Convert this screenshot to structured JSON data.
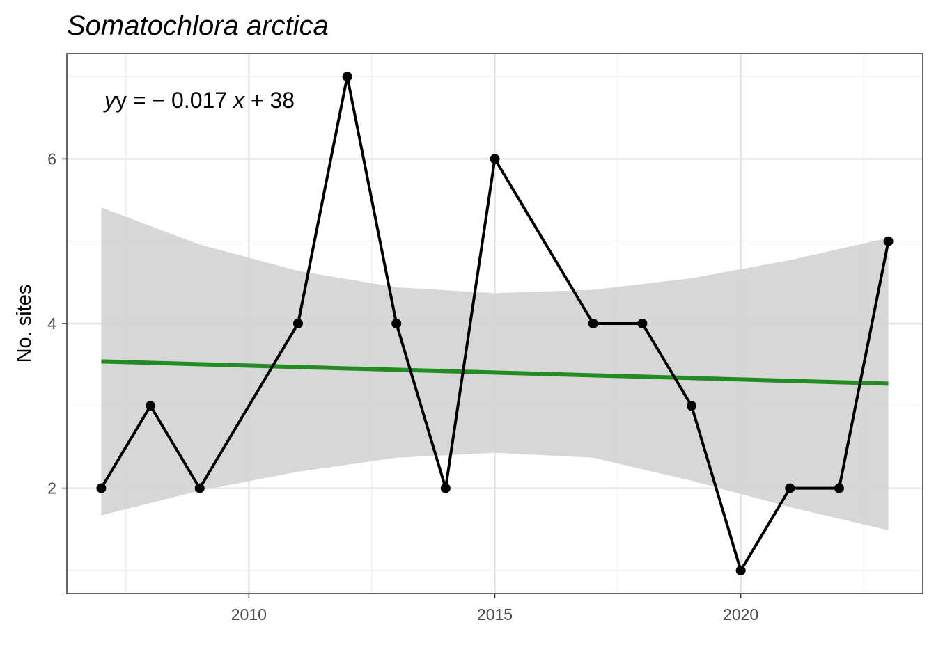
{
  "chart_data": {
    "type": "line",
    "title": "Somatochlora arctica",
    "xlabel": "",
    "ylabel": "No. sites",
    "annotation": {
      "prefix": "y = − 0.017 ",
      "x_var": "x",
      "suffix": " + 38"
    },
    "xlim": [
      2006.3,
      2023.7
    ],
    "ylim": [
      0.72,
      7.28
    ],
    "x_ticks": [
      2010,
      2015,
      2020
    ],
    "x_tick_labels": [
      "2010",
      "2015",
      "2020"
    ],
    "x_minor_ticks": [
      2007.5,
      2012.5,
      2017.5,
      2022.5
    ],
    "y_ticks": [
      2,
      4,
      6
    ],
    "y_tick_labels": [
      "2",
      "4",
      "6"
    ],
    "y_minor_ticks": [
      1,
      3,
      5,
      7
    ],
    "grid": true,
    "series": [
      {
        "x": [
          2007,
          2008,
          2009,
          2011,
          2012,
          2013,
          2014,
          2015,
          2017,
          2018,
          2019,
          2020,
          2021,
          2022,
          2023
        ],
        "y": [
          2,
          3,
          2,
          4,
          7,
          4,
          2,
          6,
          4,
          4,
          3,
          1,
          2,
          2,
          5
        ],
        "color": "#000000"
      }
    ],
    "trend": {
      "x": [
        2007,
        2023
      ],
      "y": [
        3.54,
        3.27
      ],
      "color": "#228B22"
    },
    "confidence_band": {
      "x": [
        2007,
        2009,
        2011,
        2013,
        2015,
        2017,
        2019,
        2021,
        2023
      ],
      "upper": [
        5.41,
        4.96,
        4.64,
        4.44,
        4.37,
        4.41,
        4.55,
        4.77,
        5.04
      ],
      "lower": [
        1.67,
        1.97,
        2.2,
        2.37,
        2.43,
        2.37,
        2.09,
        1.77,
        1.49
      ],
      "color": "#d3d3d3"
    }
  }
}
